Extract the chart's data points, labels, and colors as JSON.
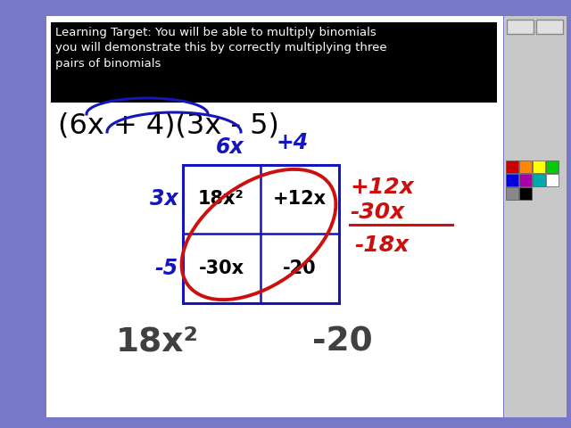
{
  "bg_color": "#7878c8",
  "header_text": "Learning Target: You will be able to multiply binomials\nyou will demonstrate this by correctly multiplying three\npairs of binomials",
  "binomial_expr": "(6x + 4)(3x - 5)",
  "col_labels": [
    "6x",
    "+4"
  ],
  "row_labels": [
    "3x",
    "-5"
  ],
  "cell_tl": "18x²",
  "cell_tr": "+12x",
  "cell_bl": "-30x",
  "cell_br": "-20",
  "side_top": "+12x",
  "side_mid": "-30x",
  "side_bot": "-18x",
  "bottom_left": "18x²",
  "bottom_right": "-20",
  "blue": "#1515bb",
  "red": "#cc1010",
  "dark_gray": "#404040",
  "black": "#000000",
  "white": "#ffffff"
}
